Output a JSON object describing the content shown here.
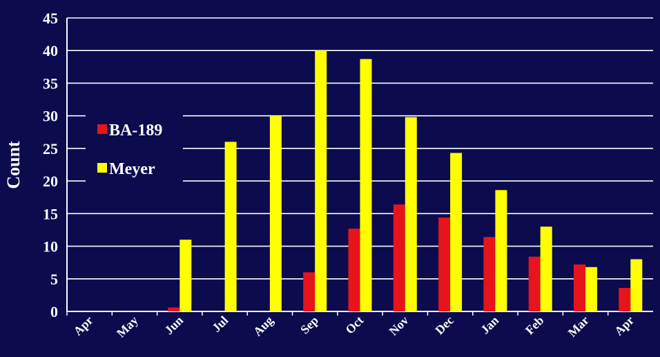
{
  "chart_data": {
    "type": "bar",
    "ylabel": "Count",
    "xlabel": "",
    "title": "",
    "ylim": [
      0,
      45
    ],
    "yticks": [
      0,
      5,
      10,
      15,
      20,
      25,
      30,
      35,
      40,
      45
    ],
    "grid": true,
    "legend_position": "left",
    "categories": [
      "Apr",
      "May",
      "Jun",
      "Jul",
      "Aug",
      "Sep",
      "Oct",
      "Nov",
      "Dec",
      "Jan",
      "Feb",
      "Mar",
      "Apr"
    ],
    "series": [
      {
        "name": "BA-189",
        "color": "#e8141b",
        "values": [
          0,
          0,
          0.6,
          0,
          0,
          6,
          12.7,
          16.4,
          14.4,
          11.4,
          8.4,
          7.2,
          3.6
        ]
      },
      {
        "name": "Meyer",
        "color": "#ffff00",
        "values": [
          0,
          0,
          11,
          26,
          30,
          40,
          38.7,
          29.8,
          24.3,
          18.6,
          13,
          6.8,
          8
        ]
      }
    ],
    "colors": {
      "background": "#0c0b4e",
      "grid": "#ffffff",
      "text": "#ffffff"
    }
  }
}
